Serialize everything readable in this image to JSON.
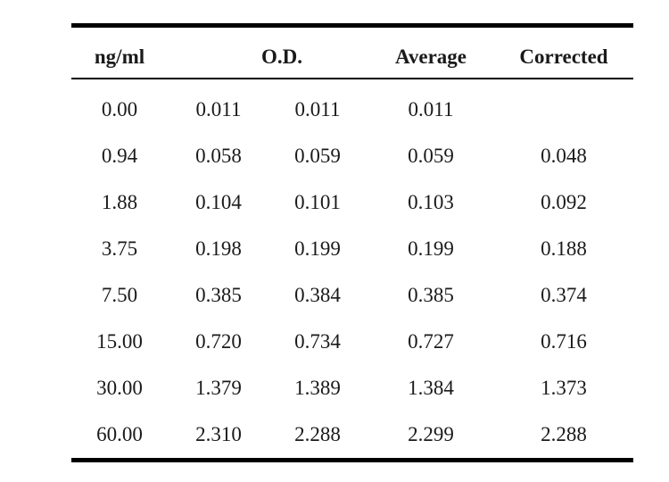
{
  "table": {
    "headers": {
      "ng": "ng/ml",
      "od": "O.D.",
      "average": "Average",
      "corrected": "Corrected"
    },
    "rows": [
      {
        "ng": "0.00",
        "od1": "0.011",
        "od2": "0.011",
        "average": "0.011",
        "corrected": ""
      },
      {
        "ng": "0.94",
        "od1": "0.058",
        "od2": "0.059",
        "average": "0.059",
        "corrected": "0.048"
      },
      {
        "ng": "1.88",
        "od1": "0.104",
        "od2": "0.101",
        "average": "0.103",
        "corrected": "0.092"
      },
      {
        "ng": "3.75",
        "od1": "0.198",
        "od2": "0.199",
        "average": "0.199",
        "corrected": "0.188"
      },
      {
        "ng": "7.50",
        "od1": "0.385",
        "od2": "0.384",
        "average": "0.385",
        "corrected": "0.374"
      },
      {
        "ng": "15.00",
        "od1": "0.720",
        "od2": "0.734",
        "average": "0.727",
        "corrected": "0.716"
      },
      {
        "ng": "30.00",
        "od1": "1.379",
        "od2": "1.389",
        "average": "1.384",
        "corrected": "1.373"
      },
      {
        "ng": "60.00",
        "od1": "2.310",
        "od2": "2.288",
        "average": "2.299",
        "corrected": "2.288"
      }
    ]
  }
}
